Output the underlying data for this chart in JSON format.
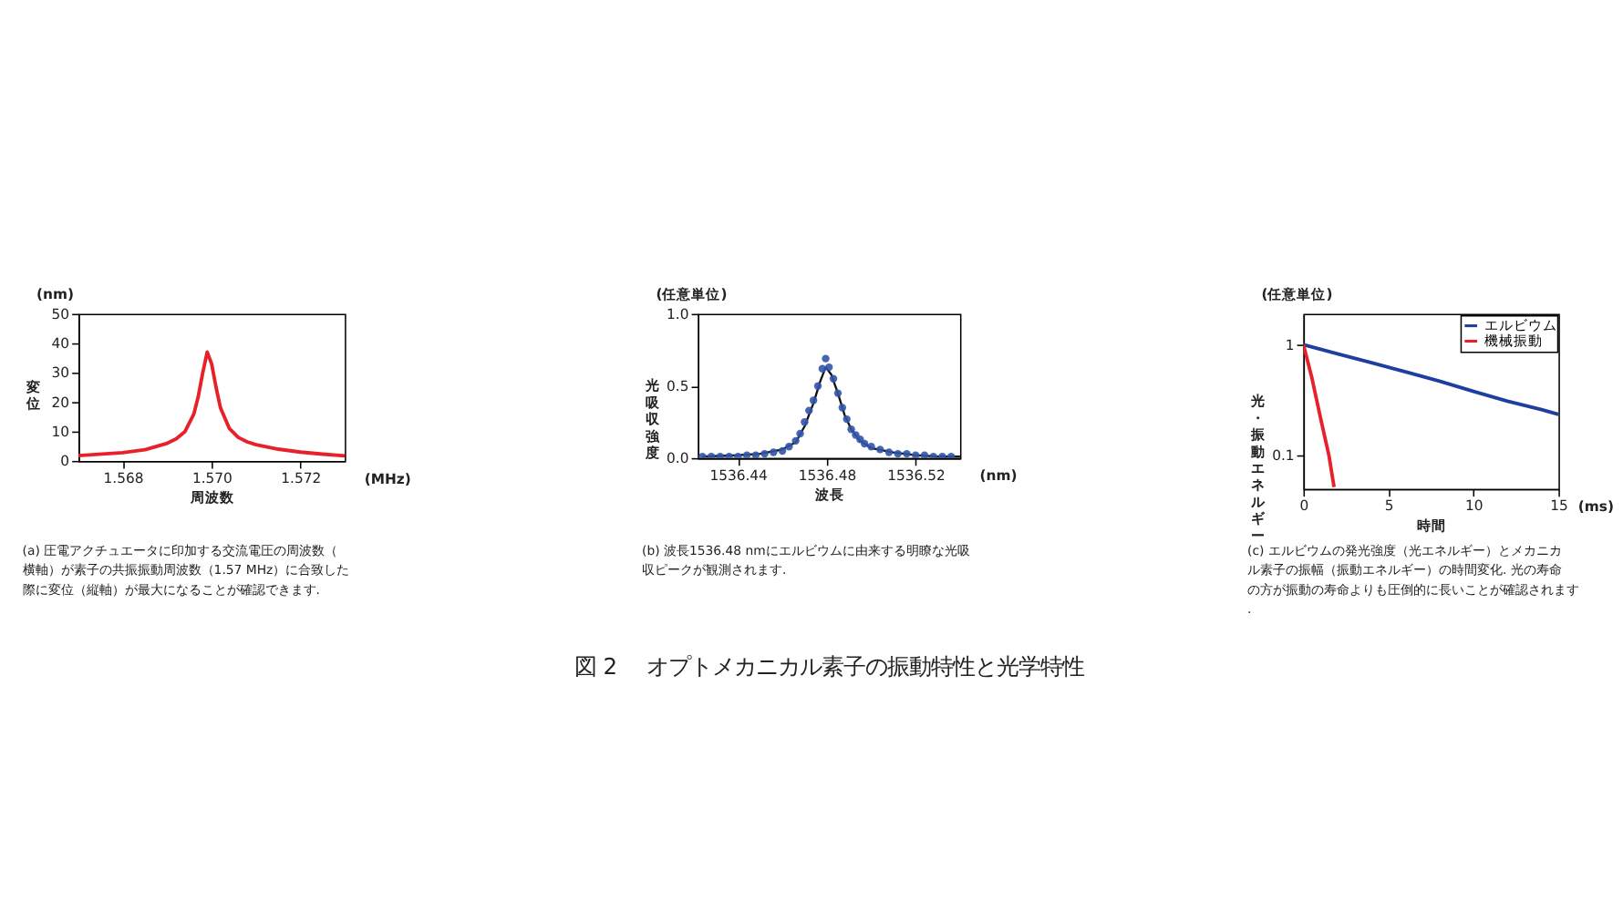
{
  "chart_data": [
    {
      "type": "line",
      "xlabel": "周波数",
      "ylabel": "変位",
      "annotations": [
        "(nm)",
        "(MHz)",
        "(a) 圧電アクチュエータに印加する交流電圧の周波数（横軸）が素子の共振振動周波数（1.57 MHz）に合致した際に変位（縦軸）が最大になることが確認できます."
      ],
      "xlim": [
        1.567,
        1.573
      ],
      "xticks": [
        1.568,
        {
          "value": 1.57,
          "label": "1.570"
        },
        1.572
      ],
      "ylim": [
        0,
        50
      ],
      "yticks": [
        0,
        10,
        20,
        30,
        40,
        50
      ],
      "grid": false,
      "series": [
        {
          "color": "#e8202a",
          "line_style": "solid",
          "x": [
            1.567,
            1.568,
            1.5685,
            1.569,
            1.5692,
            1.5694,
            1.5696,
            1.5697,
            1.5698,
            1.5699,
            1.57,
            1.5701,
            1.5702,
            1.5704,
            1.5706,
            1.5708,
            1.571,
            1.5715,
            1.572,
            1.5725,
            1.573
          ],
          "values": [
            1.8,
            2.8,
            3.8,
            6,
            7.5,
            10,
            16,
            22,
            30,
            37,
            33,
            25,
            18,
            11,
            8,
            6.5,
            5.5,
            4,
            3,
            2.3,
            1.7
          ]
        }
      ]
    },
    {
      "type": "scatter",
      "xlabel": "波長",
      "ylabel": "光吸収強度",
      "annotations": [
        "(任意単位)",
        "(nm)",
        "(b) 波長1536.48 nmにエルビウムに由来する明瞭な光吸収ピークが観測されます.",
        "図 2　 オプトメカニカル素子の振動特性と光学特性"
      ],
      "xlim": [
        1536.422,
        1536.54
      ],
      "xticks": [
        1536.44,
        1536.48,
        1536.52
      ],
      "ylim": [
        0,
        1
      ],
      "yticks": [
        {
          "value": 0,
          "label": "0.0"
        },
        {
          "value": 0.5,
          "label": "0.5"
        },
        {
          "value": 1,
          "label": "1.0"
        }
      ],
      "grid": false,
      "series": [
        {
          "type": "scatter",
          "marker": "circle",
          "color": "#3355aa",
          "x": [
            1536.424,
            1536.428,
            1536.432,
            1536.436,
            1536.44,
            1536.444,
            1536.448,
            1536.452,
            1536.456,
            1536.46,
            1536.463,
            1536.466,
            1536.468,
            1536.47,
            1536.472,
            1536.474,
            1536.476,
            1536.478,
            1536.4795,
            1536.481,
            1536.483,
            1536.485,
            1536.487,
            1536.489,
            1536.491,
            1536.493,
            1536.495,
            1536.497,
            1536.5,
            1536.504,
            1536.508,
            1536.512,
            1536.516,
            1536.52,
            1536.524,
            1536.528,
            1536.532,
            1536.536
          ],
          "values": [
            0.01,
            0.01,
            0.01,
            0.01,
            0.01,
            0.02,
            0.02,
            0.03,
            0.04,
            0.05,
            0.08,
            0.12,
            0.17,
            0.25,
            0.33,
            0.4,
            0.5,
            0.62,
            0.69,
            0.63,
            0.55,
            0.45,
            0.35,
            0.27,
            0.2,
            0.16,
            0.13,
            0.1,
            0.08,
            0.06,
            0.04,
            0.03,
            0.03,
            0.02,
            0.02,
            0.01,
            0.01,
            0.01
          ]
        },
        {
          "type": "line",
          "line_style": "solid",
          "color": "#111111",
          "x": [
            1536.424,
            1536.44,
            1536.45,
            1536.46,
            1536.466,
            1536.47,
            1536.474,
            1536.477,
            1536.4795,
            1536.482,
            1536.485,
            1536.488,
            1536.491,
            1536.495,
            1536.5,
            1536.51,
            1536.52,
            1536.53,
            1536.54
          ],
          "values": [
            0.01,
            0.02,
            0.03,
            0.06,
            0.11,
            0.22,
            0.38,
            0.53,
            0.63,
            0.58,
            0.45,
            0.3,
            0.2,
            0.12,
            0.07,
            0.04,
            0.02,
            0.01,
            0.01
          ]
        }
      ]
    },
    {
      "type": "line",
      "xlabel": "時間",
      "ylabel": "光・振動エネルギー",
      "log": true,
      "legend": "top right",
      "annotations": [
        "(任意単位)",
        "(ms)",
        "(c) エルビウムの発光強度（光エネルギー）とメカニカル素子の振幅（振動エネルギー）の時間変化. 光の寿命の方が振動の寿命よりも圧倒的に長いことが確認されます."
      ],
      "xlim": [
        0,
        15
      ],
      "xticks": [
        0,
        5,
        10,
        15
      ],
      "ylim": [
        0.05,
        1.9
      ],
      "yticks": [
        0.1,
        1
      ],
      "grid": false,
      "series": [
        {
          "name": "エルビウム",
          "line_style": "solid",
          "color": "#1f3fa0",
          "x": [
            0,
            2,
            4,
            6,
            8,
            10,
            12,
            14,
            15
          ],
          "values": [
            1,
            0.83,
            0.69,
            0.57,
            0.47,
            0.38,
            0.31,
            0.26,
            0.235
          ]
        },
        {
          "name": "機械振動",
          "line_style": "solid",
          "color": "#e8202a",
          "x": [
            0,
            0.5,
            1,
            1.5,
            1.8
          ],
          "values": [
            1,
            0.5,
            0.22,
            0.1,
            0.052
          ]
        }
      ]
    }
  ]
}
